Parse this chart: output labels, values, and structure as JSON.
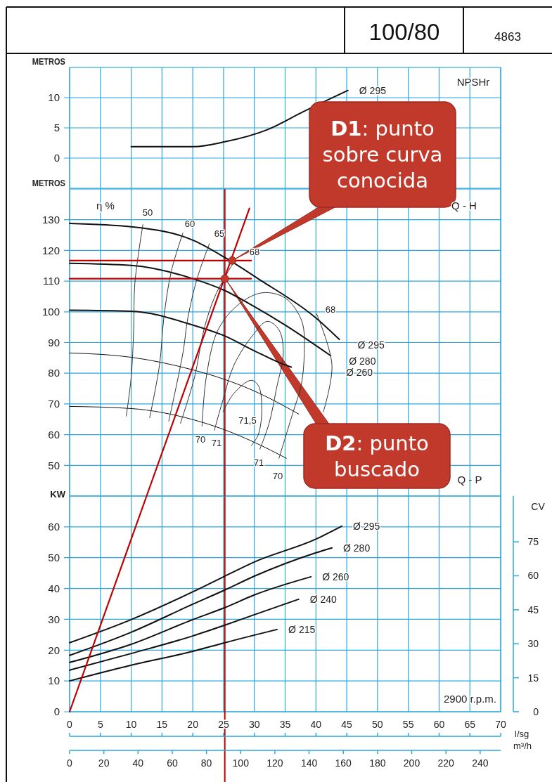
{
  "chart_data": [
    {
      "type": "line",
      "title": "100/80",
      "subtitle": "4863",
      "ylabel": "METROS",
      "xlim": [
        0,
        70
      ],
      "xticks": [
        0,
        5,
        10,
        15,
        20,
        25,
        30,
        35,
        40,
        45,
        50,
        55,
        60,
        65,
        70
      ],
      "ylim": [
        -5,
        15
      ],
      "yticks": [
        0,
        5,
        10
      ],
      "grid": true,
      "tick_labels": "y",
      "annotations": [
        "NPSHr"
      ],
      "series": [
        {
          "name": "Ø 295",
          "color": "#111111",
          "x": [
            10,
            20.1,
            25.2,
            32.1,
            37.8,
            45.2
          ],
          "values": [
            1.9,
            1.9,
            2.7,
            4.7,
            7.6,
            11.2
          ]
        }
      ]
    },
    {
      "type": "line",
      "ylabel": "METROS",
      "xlim": [
        0,
        70
      ],
      "xticks": [
        0,
        5,
        10,
        15,
        20,
        25,
        30,
        35,
        40,
        45,
        50,
        55,
        60,
        65,
        70
      ],
      "ylim": [
        40,
        140
      ],
      "yticks": [
        50,
        60,
        70,
        80,
        90,
        100,
        110,
        120,
        130
      ],
      "grid": true,
      "tick_labels": "y",
      "annotations": [
        "D1: punto sobre curva conocida",
        "D2: punto buscado",
        "η %",
        "Q - H",
        "50",
        "60",
        "65",
        "68",
        "68",
        "70",
        "71",
        "71,5",
        "71",
        "70"
      ],
      "ref_lines": [
        {
          "axis": "x",
          "value": 25.2,
          "color": "#c00000"
        }
      ],
      "series": [
        {
          "name": "Ø 295",
          "color": "#111111",
          "x": [
            0,
            10,
            20.3,
            25.2,
            30.6,
            40,
            43.8
          ],
          "values": [
            128.8,
            127.7,
            123.1,
            117.7,
            110.8,
            98,
            91
          ]
        },
        {
          "name": "Ø 280",
          "color": "#111111",
          "x": [
            0,
            10,
            20,
            25,
            30,
            35,
            42.4
          ],
          "values": [
            115.8,
            115.1,
            110.8,
            107.1,
            101.7,
            95.7,
            85.7
          ]
        },
        {
          "name": "Ø 260",
          "color": "#111111",
          "x": [
            0,
            10,
            20,
            25,
            30,
            35,
            36
          ],
          "values": [
            100.5,
            100.2,
            95.7,
            92.3,
            87.3,
            82.7,
            82
          ]
        },
        {
          "color": "#111111",
          "x": [
            0,
            10,
            20,
            25,
            30,
            37.2
          ],
          "values": [
            86.6,
            85.2,
            81.1,
            78.1,
            74.2,
            66.7
          ]
        },
        {
          "color": "#111111",
          "x": [
            0,
            10,
            20,
            25,
            30,
            35.2
          ],
          "values": [
            69.2,
            68.5,
            64.9,
            61.7,
            57.5,
            52.3
          ]
        },
        {
          "color": "#333333",
          "x": [
            11.9,
            10.6,
            10.4,
            10,
            9.2
          ],
          "values": [
            128.4,
            109.4,
            94.1,
            78.8,
            66
          ]
        },
        {
          "color": "#333333",
          "x": [
            18.4,
            16.5,
            15.3,
            14.6,
            13
          ],
          "values": [
            125.7,
            113.1,
            98,
            82.7,
            65.5
          ]
        },
        {
          "color": "#333333",
          "x": [
            22.7,
            20.7,
            19.2,
            18.4,
            16.1
          ],
          "values": [
            122.2,
            110.8,
            98,
            86.6,
            64.4
          ]
        },
        {
          "color": "#333333",
          "x": [
            26.7,
            23.7,
            21.8,
            20.3,
            18
          ],
          "values": [
            116.3,
            105.5,
            94.1,
            78.8,
            63.7
          ]
        },
        {
          "color": "#333333",
          "x": [
            40.1,
            42.6,
            41.2
          ],
          "values": [
            99.4,
            82.7,
            67.4
          ]
        },
        {
          "color": "#333333",
          "x": [
            21.5,
            22.2,
            24.1,
            27.5,
            31.3,
            35,
            37.7,
            38.1,
            37.6,
            36.3,
            34
          ],
          "values": [
            62.8,
            78.8,
            94.1,
            102.5,
            106.2,
            104.5,
            97,
            86.6,
            76,
            67.4,
            52.3
          ]
        },
        {
          "color": "#333333",
          "x": [
            23.5,
            24.9,
            26.7,
            29.8,
            32.1,
            34,
            34.7,
            33.6,
            32.4,
            30.9
          ],
          "values": [
            61.4,
            71.3,
            82.7,
            92.5,
            96.9,
            94.1,
            86.6,
            75.1,
            63.7,
            55.3
          ]
        },
        {
          "color": "#333333",
          "x": [
            24.9,
            26.7,
            29.5,
            30.7,
            31.2,
            30.6,
            29.5
          ],
          "values": [
            67.4,
            73.5,
            77.7,
            75.8,
            67.4,
            59.8,
            56.4
          ]
        },
        {
          "color": "#c00000",
          "x": [
            0,
            29.5
          ],
          "values": [
            116.7,
            116.7
          ]
        },
        {
          "color": "#c00000",
          "x": [
            0,
            29.5
          ],
          "values": [
            110.8,
            110.8
          ]
        },
        {
          "color": "#c00000",
          "x": [
            12.5,
            29.2
          ],
          "values": [
            40,
            133.7
          ]
        },
        {
          "type": "scatter",
          "marker": "circle",
          "color": "#c0392b",
          "x": [
            26.4,
            25.2
          ],
          "values": [
            116.7,
            110.8
          ]
        }
      ]
    },
    {
      "type": "line",
      "ylabel": "KW",
      "y2label": "CV",
      "xlabel": "l/sg",
      "x2label": "m³/h",
      "xlim": [
        0,
        70
      ],
      "xticks": [
        0,
        5,
        10,
        15,
        20,
        25,
        30,
        35,
        40,
        45,
        50,
        55,
        60,
        65,
        70
      ],
      "x2lim": [
        0,
        252
      ],
      "x2ticks": [
        0,
        20,
        40,
        60,
        80,
        100,
        120,
        140,
        160,
        180,
        200,
        220,
        240
      ],
      "ylim": [
        0,
        70
      ],
      "yticks": [
        0,
        10,
        20,
        30,
        40,
        50,
        60
      ],
      "y2lim": [
        0,
        95.2
      ],
      "y2ticks": [
        0,
        15,
        30,
        45,
        60,
        75
      ],
      "grid": true,
      "annotations": [
        "Q - P",
        "2900 r.p.m."
      ],
      "ref_lines": [
        {
          "axis": "x",
          "value": 25.2,
          "color": "#c00000"
        }
      ],
      "series": [
        {
          "name": "Ø 295",
          "color": "#111111",
          "x": [
            0,
            10,
            20.1,
            25.2,
            30,
            40.1,
            44.2
          ],
          "values": [
            22.4,
            29.9,
            39,
            44,
            48.6,
            56.1,
            60.2
          ]
        },
        {
          "name": "Ø 280",
          "color": "#111111",
          "x": [
            0,
            10,
            20,
            25.2,
            30,
            40,
            42.6
          ],
          "values": [
            18.3,
            25.8,
            34.9,
            39.5,
            44,
            51.6,
            53.2
          ]
        },
        {
          "name": "Ø 260",
          "color": "#111111",
          "x": [
            0,
            10,
            20,
            25.2,
            30,
            39.2
          ],
          "values": [
            16,
            21.9,
            29.9,
            33.8,
            37.9,
            43.8
          ]
        },
        {
          "name": "Ø 240",
          "color": "#111111",
          "x": [
            0,
            10,
            20,
            25.2,
            30,
            37.2
          ],
          "values": [
            13.5,
            18.9,
            24.6,
            28.1,
            31.5,
            36.5
          ]
        },
        {
          "name": "Ø 215",
          "color": "#111111",
          "x": [
            0,
            10,
            20,
            25.2,
            33.7
          ],
          "values": [
            10,
            15.1,
            19.6,
            22.4,
            26.7
          ]
        },
        {
          "color": "#c00000",
          "x": [
            0,
            12.5
          ],
          "values": [
            0,
            70
          ]
        }
      ]
    }
  ]
}
